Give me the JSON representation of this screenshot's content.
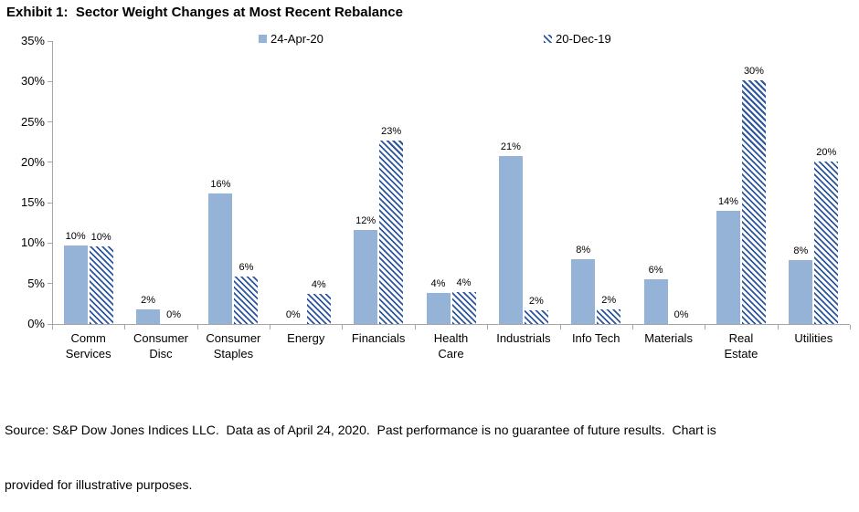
{
  "title": "Exhibit 1:  Sector Weight Changes at Most Recent Rebalance",
  "footer": {
    "line1": "Source: S&P Dow Jones Indices LLC.  Data as of April 24, 2020.  Past performance is no guarantee of future results.  Chart is",
    "line2": "provided for illustrative purposes."
  },
  "colors": {
    "apr_bar": "#95B3D7",
    "dec_hatch_fg": "#2D56A0",
    "dec_hatch_bg": "#FFFFFF",
    "axis": "#A6A6A6",
    "text": "#000000"
  },
  "chart_data": {
    "type": "bar",
    "title": "Exhibit 1:  Sector Weight Changes at Most Recent Rebalance",
    "categories": [
      [
        "Comm",
        "Services"
      ],
      [
        "Consumer",
        "Disc"
      ],
      [
        "Consumer",
        "Staples"
      ],
      [
        "Energy"
      ],
      [
        "Financials"
      ],
      [
        "Health",
        "Care"
      ],
      [
        "Industrials"
      ],
      [
        "Info Tech"
      ],
      [
        "Materials"
      ],
      [
        "Real",
        "Estate"
      ],
      [
        "Utilities"
      ]
    ],
    "series": [
      {
        "name": "24-Apr-20",
        "pattern": "solid",
        "color": "#95B3D7",
        "values": [
          9.7,
          1.8,
          16.2,
          0,
          11.6,
          3.8,
          20.8,
          8.0,
          5.5,
          14.0,
          7.9
        ],
        "labels": [
          "10%",
          "2%",
          "16%",
          "0%",
          "12%",
          "4%",
          "21%",
          "8%",
          "6%",
          "14%",
          "8%"
        ]
      },
      {
        "name": "20-Dec-19",
        "pattern": "diagonal-hatch",
        "color": "#2D56A0",
        "values": [
          9.6,
          0,
          5.9,
          3.7,
          22.7,
          3.9,
          1.7,
          1.8,
          0,
          30.1,
          20.1
        ],
        "labels": [
          "10%",
          "0%",
          "6%",
          "4%",
          "23%",
          "4%",
          "2%",
          "2%",
          "0%",
          "30%",
          "20%"
        ]
      }
    ],
    "y_axis": {
      "min": 0,
      "max": 35,
      "tick_step": 5,
      "tick_labels": [
        "0%",
        "5%",
        "10%",
        "15%",
        "20%",
        "25%",
        "30%",
        "35%"
      ]
    },
    "legend_position": "top",
    "grid": false,
    "data_labels": true
  }
}
